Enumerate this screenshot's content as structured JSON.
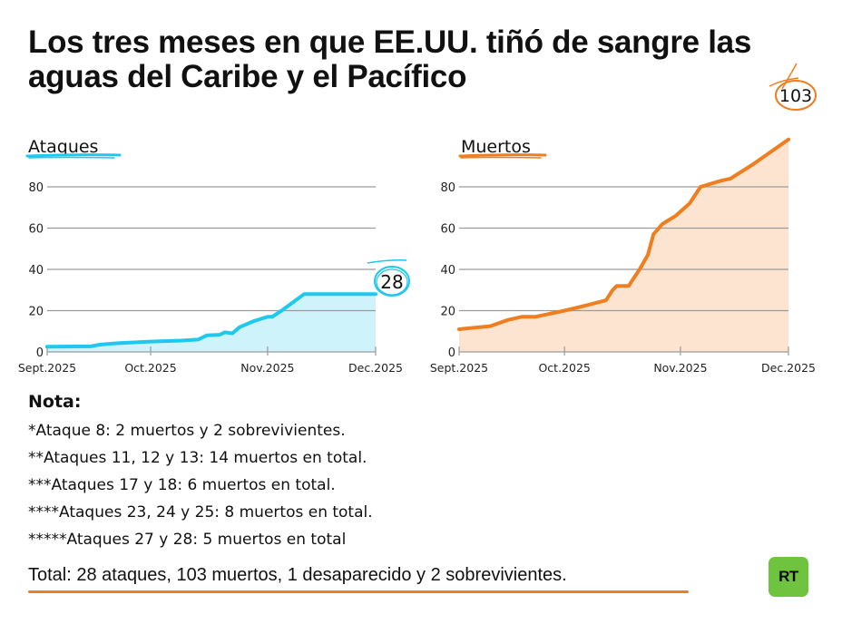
{
  "title": "Los tres meses en que EE.UU. tiñó de sangre las aguas del Caribe y el Pacífico",
  "chart_data": [
    {
      "type": "area",
      "id": "ataques",
      "title": "Ataques",
      "color": "#1ec8ee",
      "fill": "#cff3fb",
      "ylim": [
        0,
        80
      ],
      "yticks": [
        "0",
        "20",
        "40",
        "60",
        "80"
      ],
      "ytick_values": [
        0,
        20,
        40,
        60,
        80
      ],
      "xtick_labels": [
        "Sept.2025",
        "Oct.2025",
        "Nov.2025",
        "Dec.2025"
      ],
      "xtick_positions": [
        0,
        0.315,
        0.671,
        1
      ],
      "grid": true,
      "end_label": "28",
      "points": [
        [
          0.0,
          2.5
        ],
        [
          0.133,
          2.7
        ],
        [
          0.16,
          3.5
        ],
        [
          0.215,
          4.2
        ],
        [
          0.315,
          5.0
        ],
        [
          0.409,
          5.5
        ],
        [
          0.459,
          6.0
        ],
        [
          0.486,
          8.0
        ],
        [
          0.525,
          8.3
        ],
        [
          0.541,
          9.5
        ],
        [
          0.564,
          9.0
        ],
        [
          0.586,
          12.0
        ],
        [
          0.63,
          15.0
        ],
        [
          0.671,
          17.0
        ],
        [
          0.685,
          17.0
        ],
        [
          0.718,
          20.5
        ],
        [
          0.782,
          28.0
        ],
        [
          1.0,
          28.0
        ]
      ]
    },
    {
      "type": "area",
      "id": "muertos",
      "title": "Muertos",
      "color": "#f07d1e",
      "fill": "#fde4d0",
      "ylim": [
        0,
        80
      ],
      "yticks": [
        "0",
        "20",
        "40",
        "60",
        "80"
      ],
      "ytick_values": [
        0,
        20,
        40,
        60,
        80
      ],
      "xtick_labels": [
        "Sept.2025",
        "Oct.2025",
        "Nov.2025",
        "Dec.2025"
      ],
      "xtick_positions": [
        0,
        0.32,
        0.672,
        1
      ],
      "grid": true,
      "end_label": "103",
      "points": [
        [
          0.0,
          11
        ],
        [
          0.094,
          12.5
        ],
        [
          0.149,
          15.5
        ],
        [
          0.19,
          17
        ],
        [
          0.231,
          17
        ],
        [
          0.32,
          20
        ],
        [
          0.397,
          23
        ],
        [
          0.446,
          25
        ],
        [
          0.466,
          30
        ],
        [
          0.479,
          32
        ],
        [
          0.515,
          32
        ],
        [
          0.548,
          40
        ],
        [
          0.573,
          47
        ],
        [
          0.59,
          57
        ],
        [
          0.617,
          62
        ],
        [
          0.658,
          66
        ],
        [
          0.7,
          72
        ],
        [
          0.733,
          80
        ],
        [
          0.796,
          83
        ],
        [
          0.824,
          84
        ],
        [
          0.893,
          91
        ],
        [
          1.0,
          103
        ]
      ]
    }
  ],
  "notes": {
    "heading": "Nota:",
    "lines": [
      "*Ataque 8: 2 muertos y 2 sobrevivientes.",
      "**Ataques 11, 12 y 13: 14 muertos en total.",
      "***Ataques 17 y 18: 6 muertos en total.",
      "****Ataques 23, 24 y 25: 8 muertos en total.",
      "*****Ataques 27 y 28: 5 muertos en total"
    ]
  },
  "total": "Total: 28 ataques, 103 muertos, 1 desaparecido y 2 sobrevivientes.",
  "logo": {
    "text": "RT",
    "color": "#6ec33f"
  }
}
